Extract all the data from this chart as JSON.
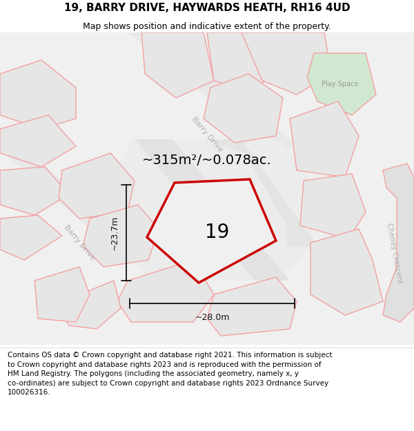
{
  "title": "19, BARRY DRIVE, HAYWARDS HEATH, RH16 4UD",
  "subtitle": "Map shows position and indicative extent of the property.",
  "footer_text": "Contains OS data © Crown copyright and database right 2021. This information is subject\nto Crown copyright and database rights 2023 and is reproduced with the permission of\nHM Land Registry. The polygons (including the associated geometry, namely x, y\nco-ordinates) are subject to Crown copyright and database rights 2023 Ordnance Survey\n100026316.",
  "area_label": "~315m²/~0.078ac.",
  "number_label": "19",
  "dim_width": "~28.0m",
  "dim_height": "~23.7m",
  "road_label_barry1": "Barry Drive",
  "road_label_barry2": "Barry Drive",
  "road_label_cheney": "Cheney Crescent",
  "play_space_label": "Play Space",
  "map_bg": "#f0f0f0",
  "block_fill": "#e6e6e6",
  "block_stroke": "#f4a0a0",
  "block_lw": 1.0,
  "main_plot_fill": "#efefef",
  "main_plot_stroke": "#cc0000",
  "main_plot_lw": 2.5,
  "green_fill": "#d0e8d0",
  "green_stroke": "#f4a0a0",
  "road_fill": "#e2e2e2",
  "cheney_fill": "#e0e0e0",
  "title_fontsize": 11,
  "subtitle_fontsize": 9,
  "footer_fontsize": 7.5,
  "road_label_color": "#b0b0b0",
  "play_space_color": "#999999",
  "dim_color": "#111111",
  "number_fontsize": 20,
  "area_fontsize": 14,
  "dim_fontsize": 9,
  "road_fontsize": 8,
  "cheney_fontsize": 7.5,
  "play_space_fontsize": 7
}
